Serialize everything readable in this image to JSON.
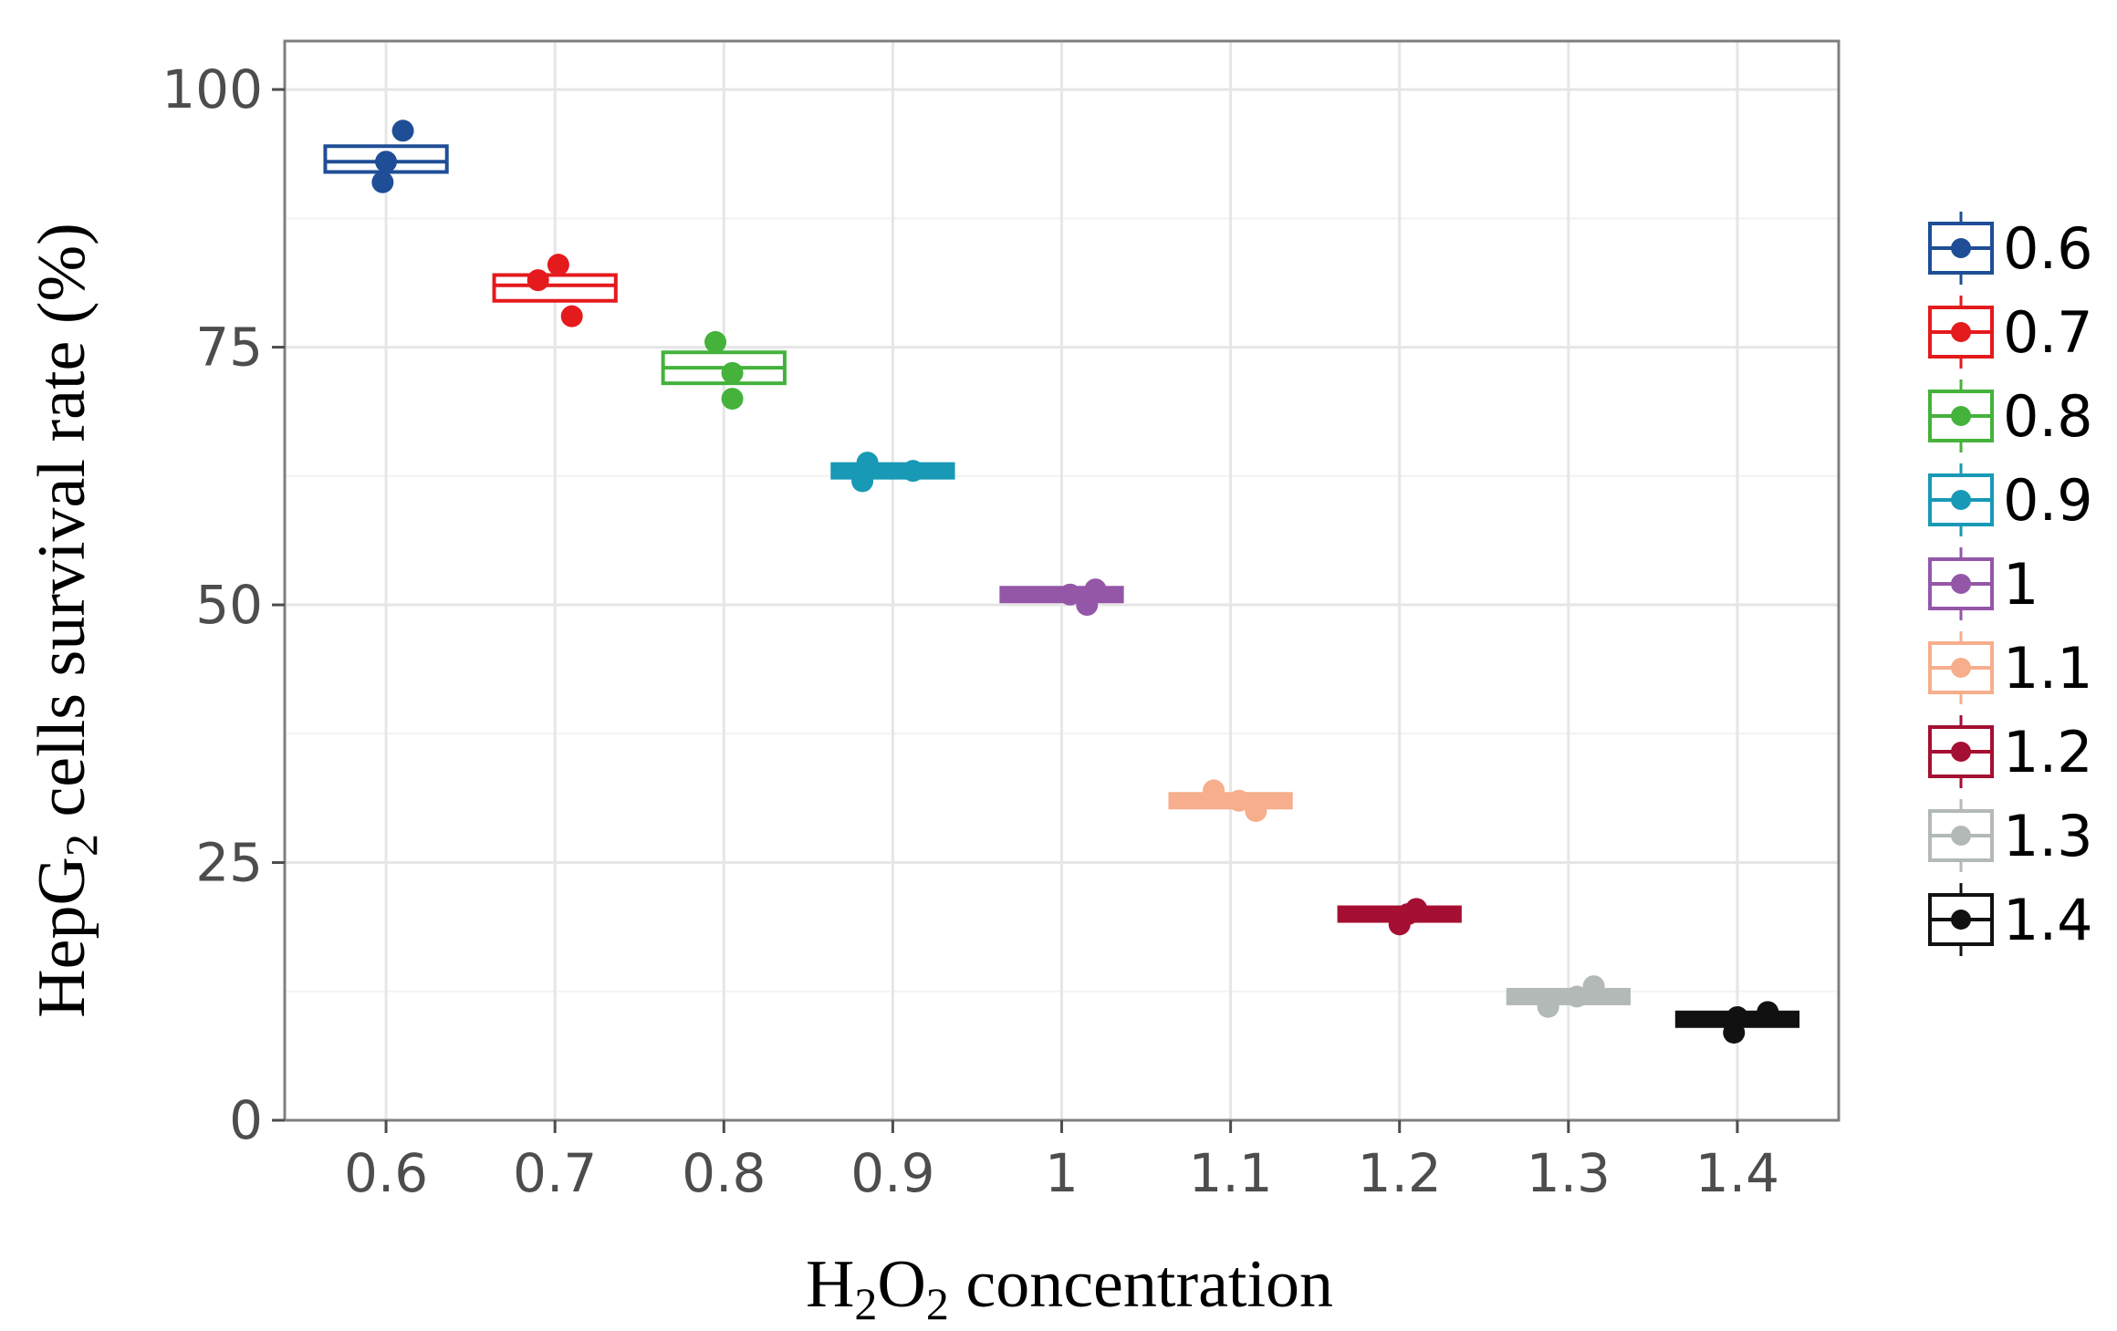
{
  "chart_data": {
    "type": "box",
    "title": "",
    "xlabel": {
      "main": "H",
      "sub1": "2",
      "mid": "O",
      "sub2": "2",
      "tail": " concentration"
    },
    "ylabel": {
      "main": "HepG",
      "sub": "2",
      "tail": " cells survival rate  (%)"
    },
    "ylim": [
      0,
      100
    ],
    "yticks": [
      0,
      25,
      50,
      75,
      100
    ],
    "grid": true,
    "legend_position": "right",
    "categories": [
      "0.6",
      "0.7",
      "0.8",
      "0.9",
      "1",
      "1.1",
      "1.2",
      "1.3",
      "1.4"
    ],
    "series": [
      {
        "name": "0.6",
        "color": "#1f4e96",
        "q1": 92.0,
        "median": 93.0,
        "q3": 94.5,
        "points": [
          {
            "v": 96.0,
            "j": 0.1
          },
          {
            "v": 93.0,
            "j": 0.0
          },
          {
            "v": 91.0,
            "j": -0.02
          }
        ]
      },
      {
        "name": "0.7",
        "color": "#e41a1c",
        "q1": 79.5,
        "median": 81.0,
        "q3": 82.0,
        "points": [
          {
            "v": 83.0,
            "j": 0.02
          },
          {
            "v": 81.5,
            "j": -0.1
          },
          {
            "v": 78.0,
            "j": 0.1
          }
        ]
      },
      {
        "name": "0.8",
        "color": "#44b23b",
        "q1": 71.5,
        "median": 73.0,
        "q3": 74.5,
        "points": [
          {
            "v": 75.5,
            "j": -0.05
          },
          {
            "v": 72.5,
            "j": 0.05
          },
          {
            "v": 70.0,
            "j": 0.05
          }
        ]
      },
      {
        "name": "0.9",
        "color": "#1899b5",
        "q1": 62.5,
        "median": 63.0,
        "q3": 63.5,
        "points": [
          {
            "v": 63.8,
            "j": -0.15
          },
          {
            "v": 62.0,
            "j": -0.18
          },
          {
            "v": 63.0,
            "j": 0.12
          }
        ]
      },
      {
        "name": "1",
        "color": "#9457a8",
        "q1": 50.5,
        "median": 51.0,
        "q3": 51.5,
        "points": [
          {
            "v": 51.5,
            "j": 0.2
          },
          {
            "v": 50.0,
            "j": 0.15
          },
          {
            "v": 51.0,
            "j": 0.05
          }
        ]
      },
      {
        "name": "1.1",
        "color": "#f6ae8c",
        "q1": 30.5,
        "median": 31.0,
        "q3": 31.5,
        "points": [
          {
            "v": 32.0,
            "j": -0.1
          },
          {
            "v": 31.0,
            "j": 0.05
          },
          {
            "v": 30.0,
            "j": 0.15
          }
        ]
      },
      {
        "name": "1.2",
        "color": "#a50f32",
        "q1": 19.5,
        "median": 20.0,
        "q3": 20.5,
        "points": [
          {
            "v": 19.0,
            "j": 0.0
          },
          {
            "v": 20.0,
            "j": 0.05
          },
          {
            "v": 20.5,
            "j": 0.1
          }
        ]
      },
      {
        "name": "1.3",
        "color": "#b3b9b7",
        "q1": 11.5,
        "median": 12.0,
        "q3": 12.5,
        "points": [
          {
            "v": 11.0,
            "j": -0.12
          },
          {
            "v": 12.0,
            "j": 0.05
          },
          {
            "v": 13.0,
            "j": 0.15
          }
        ]
      },
      {
        "name": "1.4",
        "color": "#111111",
        "q1": 9.0,
        "median": 9.8,
        "q3": 10.5,
        "points": [
          {
            "v": 8.5,
            "j": -0.02
          },
          {
            "v": 10.0,
            "j": 0.0
          },
          {
            "v": 10.5,
            "j": 0.18
          }
        ]
      }
    ]
  }
}
